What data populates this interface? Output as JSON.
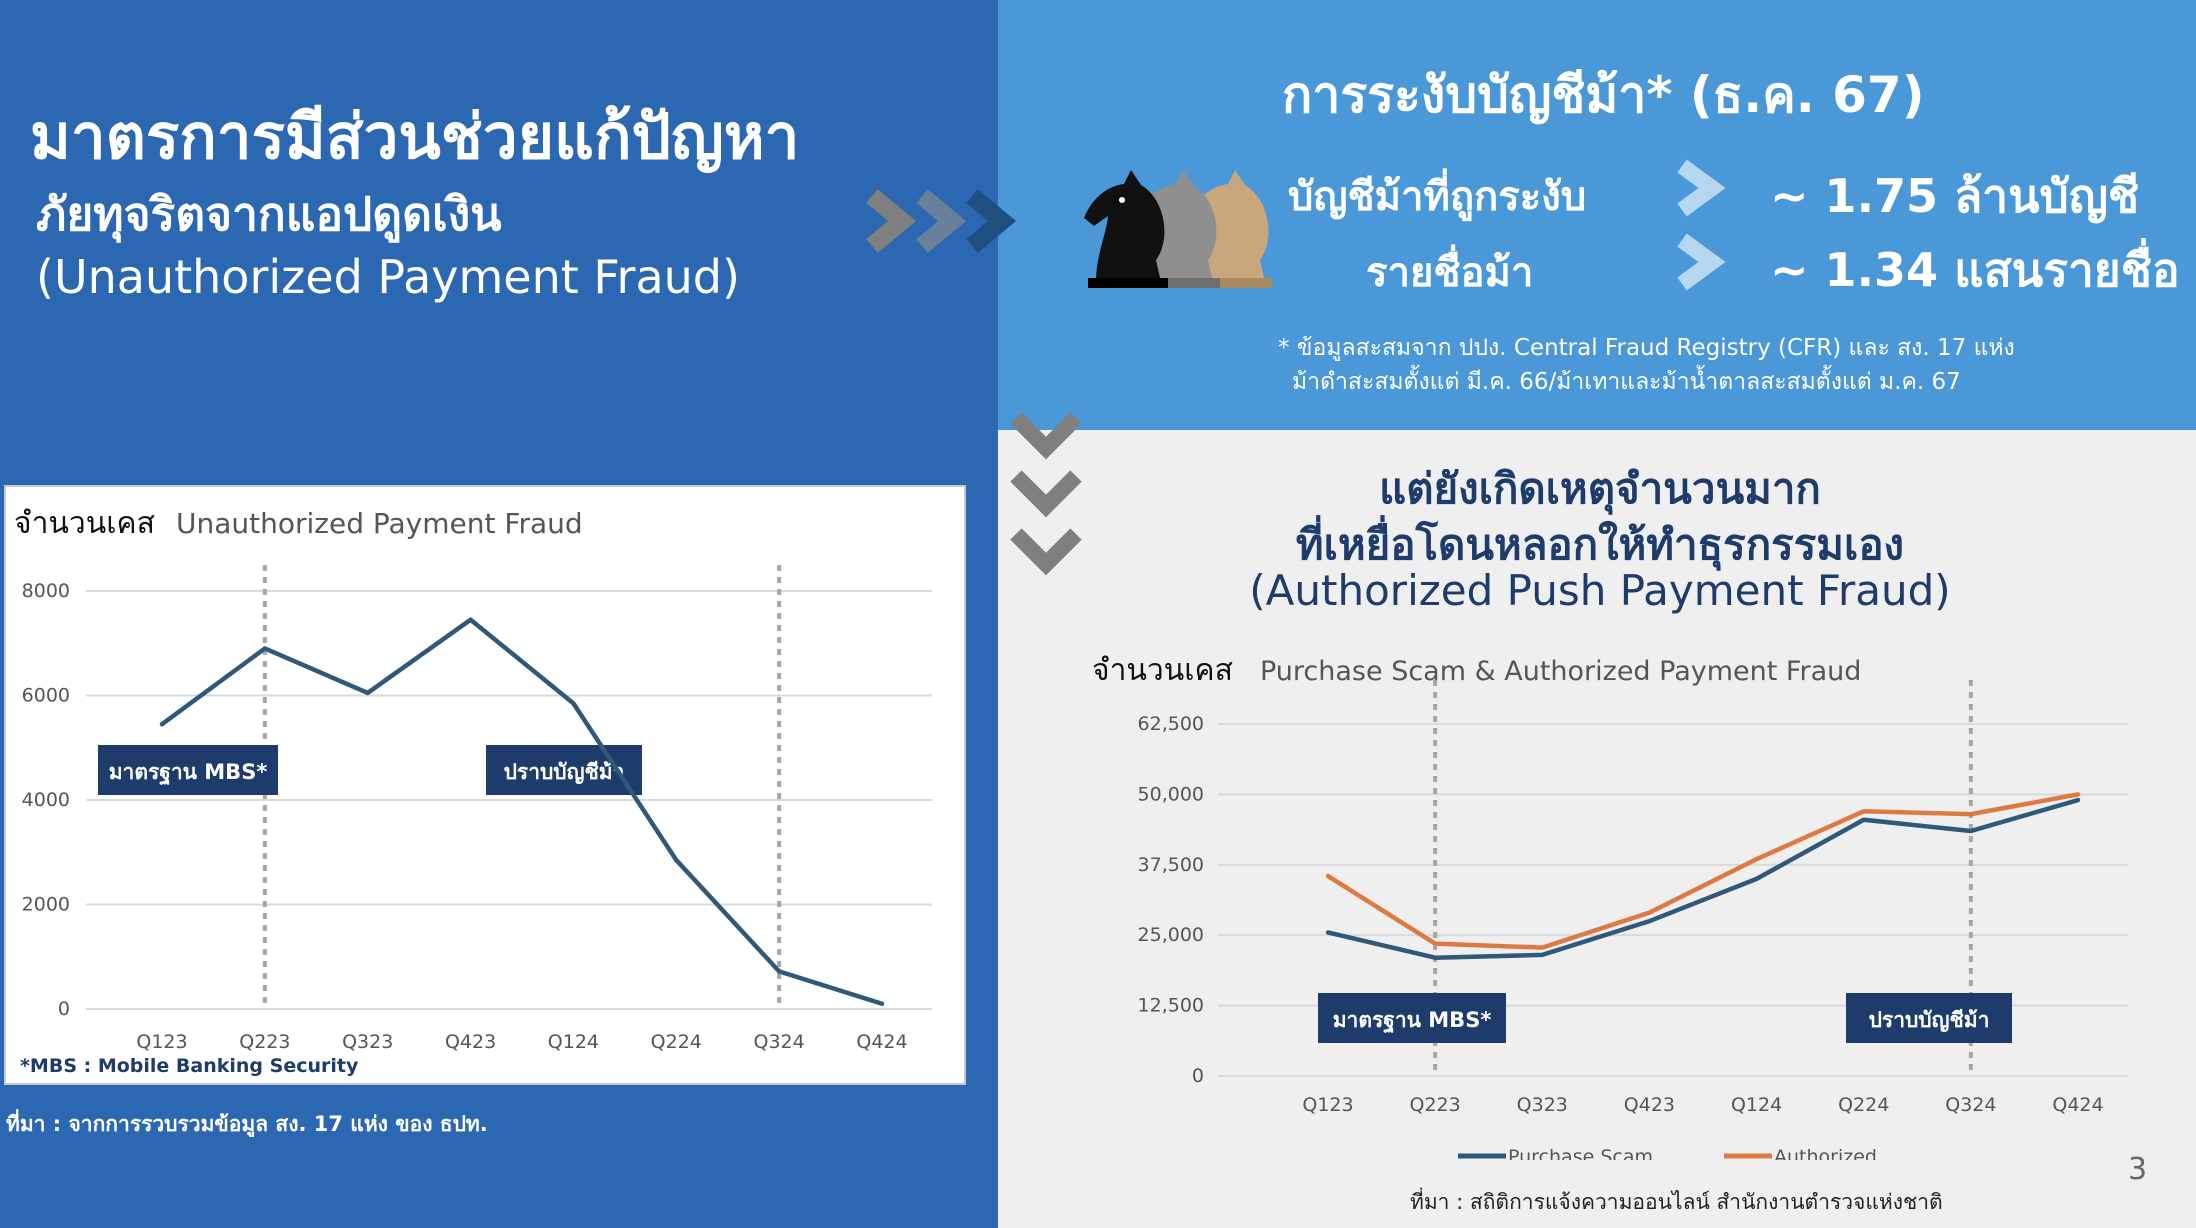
{
  "left": {
    "title_line1": "มาตรการมีส่วนช่วยแก้ปัญหา",
    "title_line2": "ภัยทุจริตจากแอปดูดเงิน",
    "title_line3": "(Unauthorized Payment Fraud)",
    "source": "ที่มา : จากการรวบรวมข้อมูล สง. 17 แห่ง ของ ธปท."
  },
  "suspension": {
    "title": "การระงับบัญชีม้า* (ธ.ค. 67)",
    "rows": [
      {
        "label": "บัญชีม้าที่ถูกระงับ",
        "value": "~ 1.75 ล้านบัญชี"
      },
      {
        "label": "รายชื่อม้า",
        "value": "~ 1.34 แสนรายชื่อ"
      }
    ],
    "footnote_line1": "* ข้อมูลสะสมจาก ปปง. Central Fraud Registry (CFR) และ สง. 17 แห่ง",
    "footnote_line2": "ม้าดำสะสมตั้งแต่ มี.ค. 66/ม้าเทาและม้าน้ำตาลสะสมตั้งแต่ ม.ค. 67"
  },
  "app_fraud": {
    "title_line1": "แต่ยังเกิดเหตุจำนวนมาก",
    "title_line2": "ที่เหยื่อโดนหลอกให้ทำธุรกรรมเอง",
    "title_line3": "(Authorized Push Payment Fraud)",
    "source": "ที่มา : สถิติการแจ้งความออนไลน์ สำนักงานตำรวจแห่งชาติ"
  },
  "page_number": "3",
  "colors": {
    "left_bg": "#2c67b1",
    "top_right_bg": "#4a98d8",
    "navy": "#1d3b6b",
    "series_blue": "#2f5879",
    "series_orange": "#de7a41",
    "chevron_gray": "#7f7f7f",
    "chevron_blue": "#1f4f7f",
    "chevron_light": "#b7d7f1"
  },
  "icons": [
    "chevron-right-icon",
    "chevron-down-icon",
    "horse-knight-icon"
  ],
  "chart_data": [
    {
      "type": "line",
      "ylabel": "จำนวนเคส",
      "title": "Unauthorized Payment Fraud",
      "categories": [
        "Q123",
        "Q223",
        "Q323",
        "Q423",
        "Q124",
        "Q224",
        "Q324",
        "Q424"
      ],
      "series": [
        {
          "values": [
            5450,
            6900,
            6050,
            7450,
            5850,
            2850,
            720,
            100
          ]
        }
      ],
      "ylim": [
        0,
        8000
      ],
      "yticks": [
        "0",
        "2000",
        "4000",
        "6000",
        "8000"
      ],
      "grid": true,
      "markers": [
        {
          "label": "มาตรฐาน MBS*",
          "at": "Q223"
        },
        {
          "label": "ปราบบัญชีม้า",
          "at": "Q324"
        }
      ],
      "footnote": "*MBS : Mobile Banking Security"
    },
    {
      "type": "line",
      "ylabel": "จำนวนเคส",
      "title": "Purchase Scam & Authorized Payment Fraud",
      "categories": [
        "Q123",
        "Q223",
        "Q323",
        "Q423",
        "Q124",
        "Q224",
        "Q324",
        "Q424"
      ],
      "series": [
        {
          "name": "Purchase Scam",
          "values": [
            25500,
            21000,
            21500,
            27500,
            35000,
            45500,
            43500,
            49000
          ]
        },
        {
          "name": "Authorized",
          "values": [
            35500,
            23500,
            22800,
            29000,
            38500,
            47000,
            46500,
            50000
          ]
        }
      ],
      "ylim": [
        0,
        62500
      ],
      "yticks": [
        "0",
        "12,500",
        "25,000",
        "37,500",
        "50,000",
        "62,500"
      ],
      "grid": true,
      "legend": "bottom",
      "markers": [
        {
          "label": "มาตรฐาน MBS*",
          "at": "Q223"
        },
        {
          "label": "ปราบบัญชีม้า",
          "at": "Q324"
        }
      ]
    }
  ]
}
